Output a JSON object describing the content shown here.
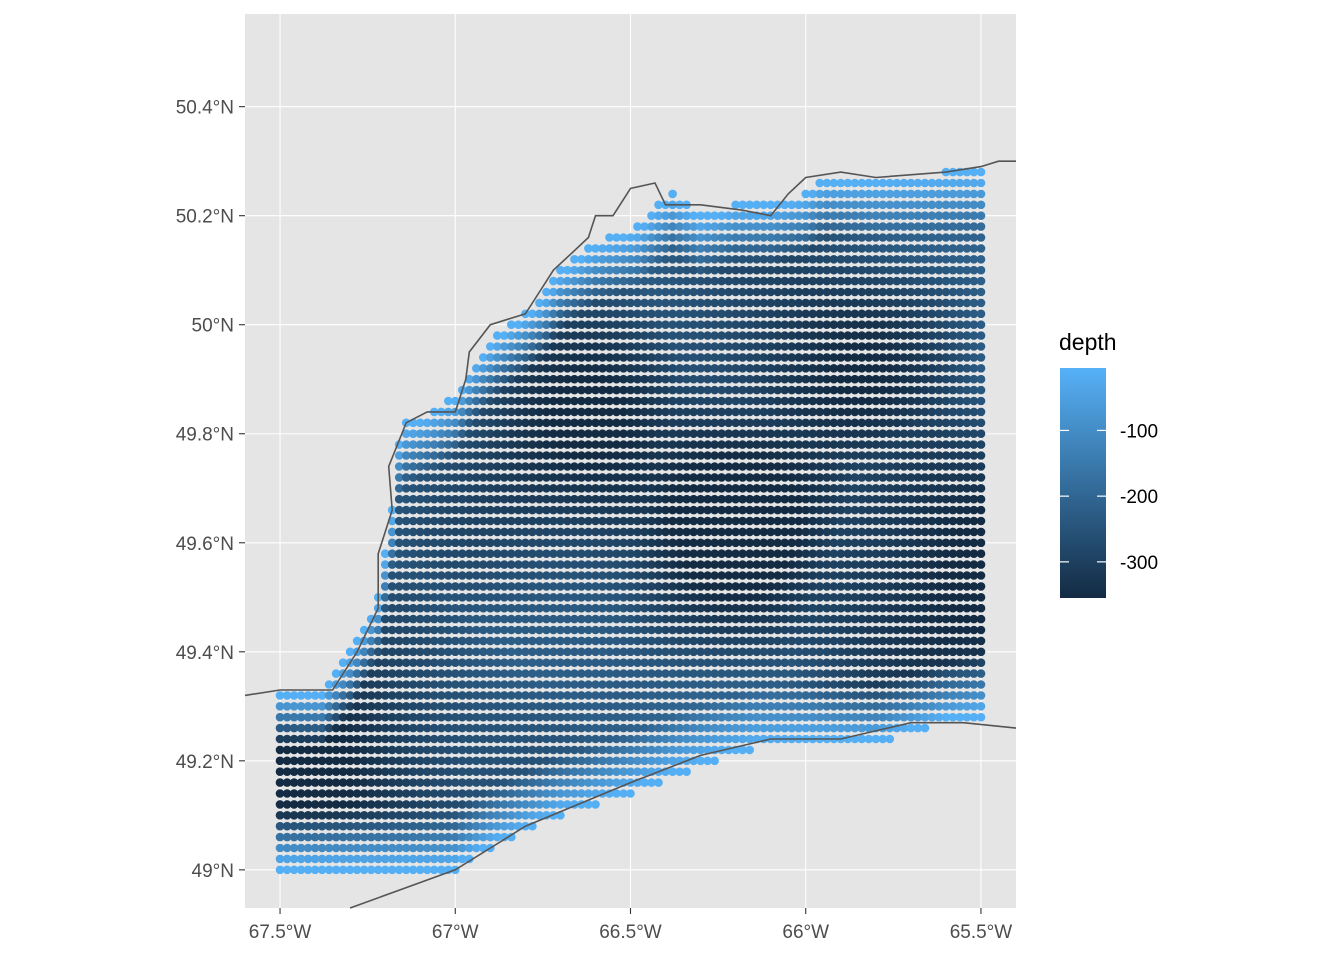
{
  "chart_data": {
    "type": "scatter",
    "subtype": "gridded-depth-map",
    "title": "",
    "xlabel": "",
    "ylabel": "",
    "xlim": [
      -67.6,
      -65.4
    ],
    "ylim": [
      48.93,
      50.57
    ],
    "grid": true,
    "legend_position": "right",
    "x_ticks": [
      {
        "value": -67.5,
        "label": "67.5°W"
      },
      {
        "value": -67.0,
        "label": "67°W"
      },
      {
        "value": -66.5,
        "label": "66.5°W"
      },
      {
        "value": -66.0,
        "label": "66°W"
      },
      {
        "value": -65.5,
        "label": "65.5°W"
      }
    ],
    "y_ticks": [
      {
        "value": 49.0,
        "label": "49°N"
      },
      {
        "value": 49.2,
        "label": "49.2°N"
      },
      {
        "value": 49.4,
        "label": "49.4°N"
      },
      {
        "value": 49.6,
        "label": "49.6°N"
      },
      {
        "value": 49.8,
        "label": "49.8°N"
      },
      {
        "value": 50.0,
        "label": "50°N"
      },
      {
        "value": 50.2,
        "label": "50.2°N"
      },
      {
        "value": 50.4,
        "label": "50.4°N"
      }
    ],
    "color_scale": {
      "variable": "depth",
      "title": "depth",
      "low_color": "#132B43",
      "high_color": "#56B1F7",
      "limits": [
        -355,
        -5
      ],
      "breaks": [
        {
          "value": -100,
          "label": "-100"
        },
        {
          "value": -200,
          "label": "-200"
        },
        {
          "value": -300,
          "label": "-300"
        }
      ]
    },
    "grid_points": {
      "x_start": -67.5,
      "x_end": -65.5,
      "x_step": 0.02,
      "y_start": 49.0,
      "y_end": 50.28,
      "y_step": 0.02,
      "bottom_edge": [
        [
          -67.5,
          49.0
        ],
        [
          -67.0,
          49.0
        ],
        [
          -66.9,
          49.04
        ],
        [
          -66.7,
          49.1
        ],
        [
          -66.5,
          49.14
        ],
        [
          -66.3,
          49.19
        ],
        [
          -66.15,
          49.22
        ],
        [
          -66.0,
          49.23
        ],
        [
          -65.8,
          49.23
        ],
        [
          -65.6,
          49.27
        ],
        [
          -65.5,
          49.28
        ]
      ],
      "top_edge": [
        [
          -67.5,
          49.33
        ],
        [
          -67.38,
          49.33
        ],
        [
          -67.3,
          49.4
        ],
        [
          -67.22,
          49.5
        ],
        [
          -67.2,
          49.58
        ],
        [
          -67.18,
          49.66
        ],
        [
          -67.17,
          49.72
        ],
        [
          -67.18,
          49.76
        ],
        [
          -67.14,
          49.82
        ],
        [
          -67.07,
          49.84
        ],
        [
          -67.0,
          49.87
        ],
        [
          -66.95,
          49.93
        ],
        [
          -66.88,
          49.98
        ],
        [
          -66.8,
          50.02
        ],
        [
          -66.75,
          50.05
        ],
        [
          -66.7,
          50.1
        ],
        [
          -66.6,
          50.15
        ],
        [
          -66.48,
          50.18
        ],
        [
          -66.42,
          50.22
        ],
        [
          -66.38,
          50.24
        ],
        [
          -66.3,
          50.2
        ],
        [
          -66.2,
          50.22
        ],
        [
          -66.1,
          50.22
        ],
        [
          -66.0,
          50.24
        ],
        [
          -65.95,
          50.27
        ],
        [
          -65.8,
          50.27
        ],
        [
          -65.6,
          50.28
        ],
        [
          -65.5,
          50.28
        ]
      ],
      "deep_centers": [
        {
          "x": -66.2,
          "y": 49.68,
          "depth": -345
        },
        {
          "x": -65.6,
          "y": 49.55,
          "depth": -355
        },
        {
          "x": -67.35,
          "y": 49.18,
          "depth": -335
        },
        {
          "x": -66.6,
          "y": 49.75,
          "depth": -315
        },
        {
          "x": -66.0,
          "y": 49.9,
          "depth": -300
        }
      ]
    },
    "coastline_north": [
      [
        -67.6,
        49.32
      ],
      [
        -67.5,
        49.33
      ],
      [
        -67.35,
        49.33
      ],
      [
        -67.28,
        49.4
      ],
      [
        -67.22,
        49.48
      ],
      [
        -67.22,
        49.58
      ],
      [
        -67.18,
        49.66
      ],
      [
        -67.19,
        49.74
      ],
      [
        -67.14,
        49.82
      ],
      [
        -67.08,
        49.84
      ],
      [
        -67.0,
        49.84
      ],
      [
        -66.97,
        49.9
      ],
      [
        -66.96,
        49.95
      ],
      [
        -66.9,
        50.0
      ],
      [
        -66.8,
        50.02
      ],
      [
        -66.77,
        50.05
      ],
      [
        -66.72,
        50.1
      ],
      [
        -66.67,
        50.13
      ],
      [
        -66.62,
        50.16
      ],
      [
        -66.6,
        50.2
      ],
      [
        -66.55,
        50.2
      ],
      [
        -66.5,
        50.25
      ],
      [
        -66.43,
        50.26
      ],
      [
        -66.4,
        50.22
      ],
      [
        -66.3,
        50.22
      ],
      [
        -66.18,
        50.21
      ],
      [
        -66.1,
        50.2
      ],
      [
        -66.05,
        50.24
      ],
      [
        -66.0,
        50.27
      ],
      [
        -65.9,
        50.28
      ],
      [
        -65.8,
        50.27
      ],
      [
        -65.6,
        50.28
      ],
      [
        -65.5,
        50.29
      ],
      [
        -65.45,
        50.3
      ],
      [
        -65.4,
        50.3
      ]
    ],
    "coastline_south": [
      [
        -67.3,
        48.93
      ],
      [
        -67.0,
        49.0
      ],
      [
        -66.8,
        49.08
      ],
      [
        -66.5,
        49.16
      ],
      [
        -66.3,
        49.21
      ],
      [
        -66.1,
        49.24
      ],
      [
        -65.9,
        49.24
      ],
      [
        -65.7,
        49.27
      ],
      [
        -65.55,
        49.27
      ],
      [
        -65.4,
        49.26
      ]
    ]
  }
}
